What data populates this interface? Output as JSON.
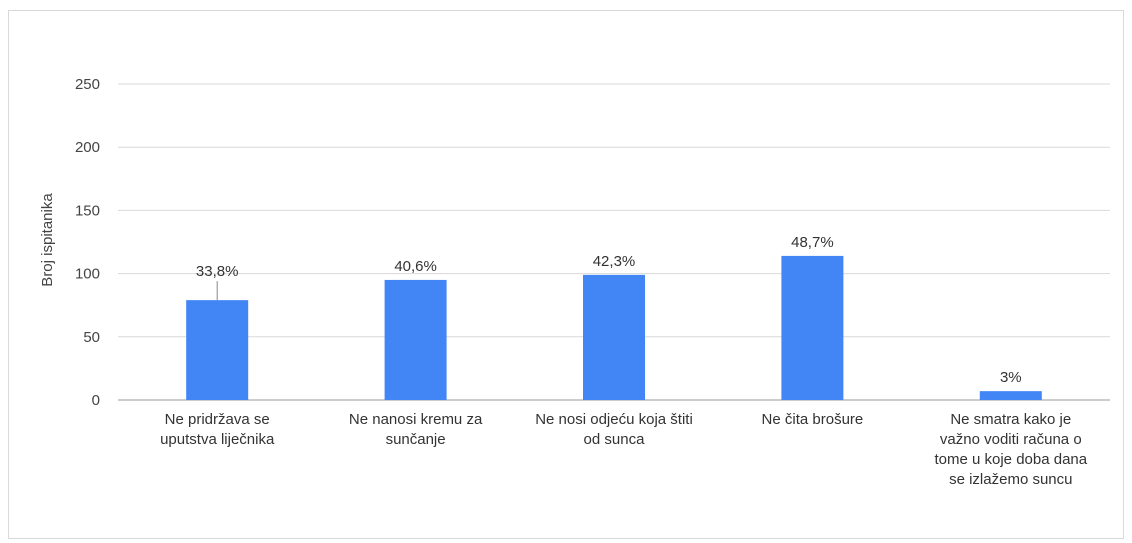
{
  "chart_data": {
    "type": "bar",
    "title": "",
    "xlabel": "",
    "ylabel": "Broj ispitanika",
    "ylim": [
      0,
      250
    ],
    "yticks": [
      0,
      50,
      100,
      150,
      200,
      250
    ],
    "grid": true,
    "legend": "none",
    "bar_color": "#4285F4",
    "categories": [
      [
        "Ne pridržava se",
        "uputstva liječnika"
      ],
      [
        "Ne nanosi kremu za",
        "sunčanje"
      ],
      [
        "Ne nosi odjeću koja štiti",
        "od sunca"
      ],
      [
        "Ne čita brošure"
      ],
      [
        "Ne smatra kako je",
        "važno voditi računa  o",
        "tome u koje doba dana",
        "se izlažemo suncu"
      ]
    ],
    "values": [
      79,
      95,
      99,
      114,
      7
    ],
    "data_labels": [
      "33,8%",
      "40,6%",
      "42,3%",
      "48,7%",
      "3%"
    ]
  }
}
